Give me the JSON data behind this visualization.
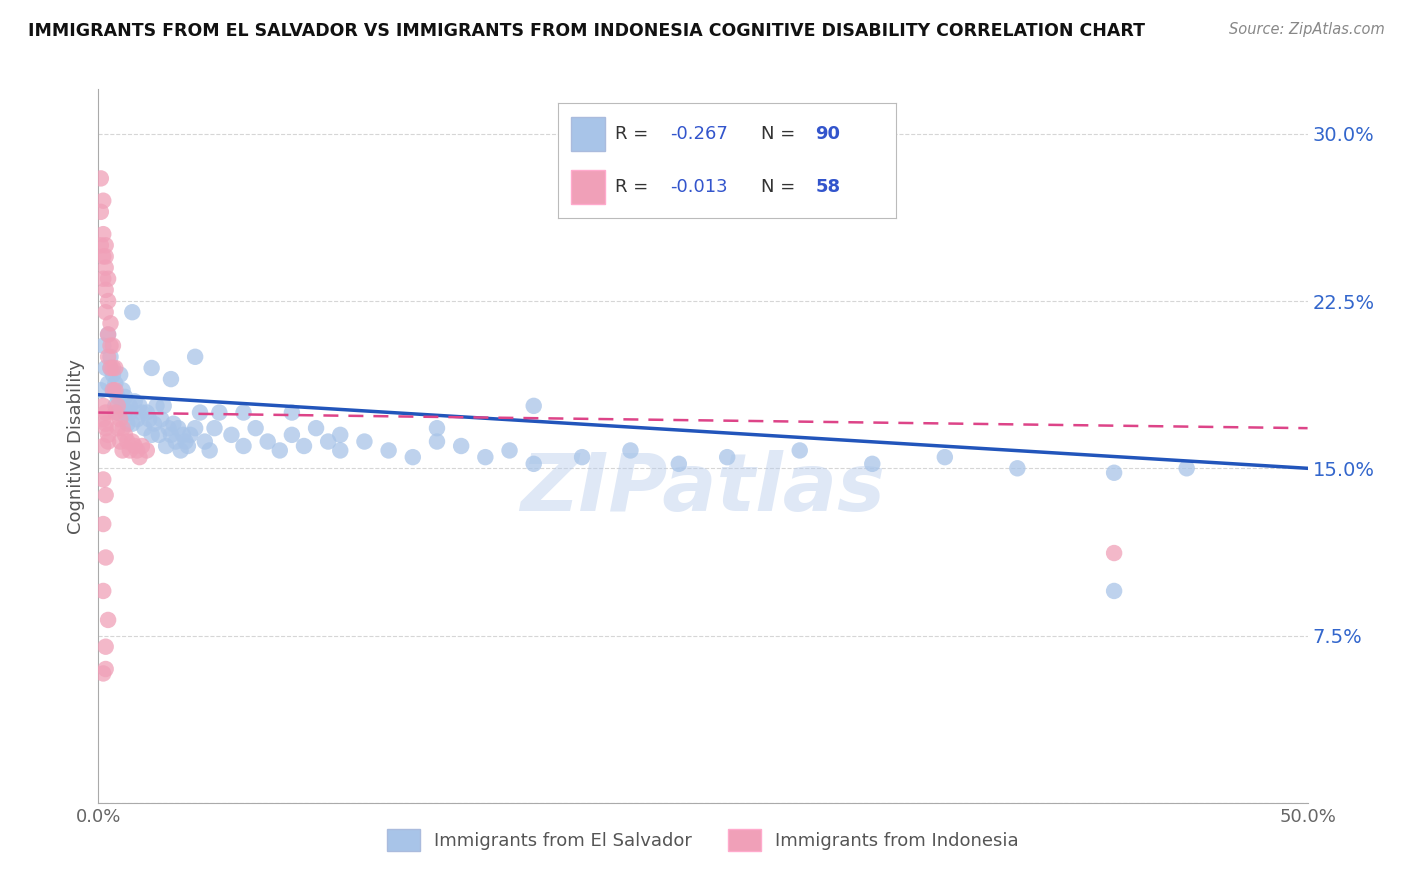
{
  "title": "IMMIGRANTS FROM EL SALVADOR VS IMMIGRANTS FROM INDONESIA COGNITIVE DISABILITY CORRELATION CHART",
  "source": "Source: ZipAtlas.com",
  "ylabel": "Cognitive Disability",
  "series1": {
    "name": "Immigrants from El Salvador",
    "R": -0.267,
    "N": 90,
    "color": "#a8c4e8",
    "line_color": "#2255bb",
    "x": [
      0.001,
      0.002,
      0.003,
      0.004,
      0.004,
      0.005,
      0.005,
      0.006,
      0.006,
      0.007,
      0.007,
      0.008,
      0.008,
      0.009,
      0.01,
      0.01,
      0.011,
      0.011,
      0.012,
      0.013,
      0.013,
      0.014,
      0.015,
      0.016,
      0.017,
      0.018,
      0.019,
      0.02,
      0.021,
      0.022,
      0.023,
      0.024,
      0.025,
      0.026,
      0.027,
      0.028,
      0.029,
      0.03,
      0.031,
      0.032,
      0.033,
      0.034,
      0.035,
      0.036,
      0.037,
      0.038,
      0.04,
      0.042,
      0.044,
      0.046,
      0.048,
      0.05,
      0.055,
      0.06,
      0.065,
      0.07,
      0.075,
      0.08,
      0.085,
      0.09,
      0.095,
      0.1,
      0.11,
      0.12,
      0.13,
      0.14,
      0.15,
      0.16,
      0.17,
      0.18,
      0.2,
      0.22,
      0.24,
      0.26,
      0.29,
      0.32,
      0.35,
      0.38,
      0.42,
      0.45,
      0.014,
      0.022,
      0.03,
      0.04,
      0.06,
      0.08,
      0.1,
      0.14,
      0.18,
      0.42
    ],
    "y": [
      0.185,
      0.205,
      0.195,
      0.188,
      0.21,
      0.2,
      0.195,
      0.185,
      0.192,
      0.178,
      0.188,
      0.182,
      0.175,
      0.192,
      0.178,
      0.185,
      0.175,
      0.182,
      0.17,
      0.178,
      0.175,
      0.17,
      0.18,
      0.172,
      0.178,
      0.175,
      0.168,
      0.175,
      0.172,
      0.165,
      0.17,
      0.178,
      0.165,
      0.172,
      0.178,
      0.16,
      0.168,
      0.165,
      0.17,
      0.162,
      0.168,
      0.158,
      0.165,
      0.162,
      0.16,
      0.165,
      0.168,
      0.175,
      0.162,
      0.158,
      0.168,
      0.175,
      0.165,
      0.16,
      0.168,
      0.162,
      0.158,
      0.165,
      0.16,
      0.168,
      0.162,
      0.158,
      0.162,
      0.158,
      0.155,
      0.162,
      0.16,
      0.155,
      0.158,
      0.152,
      0.155,
      0.158,
      0.152,
      0.155,
      0.158,
      0.152,
      0.155,
      0.15,
      0.148,
      0.15,
      0.22,
      0.195,
      0.19,
      0.2,
      0.175,
      0.175,
      0.165,
      0.168,
      0.178,
      0.095
    ]
  },
  "series2": {
    "name": "Immigrants from Indonesia",
    "R": -0.013,
    "N": 58,
    "color": "#f0a0b8",
    "line_color": "#dd4488",
    "x": [
      0.001,
      0.001,
      0.001,
      0.002,
      0.002,
      0.002,
      0.002,
      0.003,
      0.003,
      0.003,
      0.003,
      0.003,
      0.004,
      0.004,
      0.004,
      0.004,
      0.005,
      0.005,
      0.005,
      0.006,
      0.006,
      0.006,
      0.007,
      0.007,
      0.007,
      0.008,
      0.008,
      0.009,
      0.009,
      0.01,
      0.01,
      0.011,
      0.012,
      0.013,
      0.014,
      0.015,
      0.016,
      0.017,
      0.018,
      0.02,
      0.002,
      0.003,
      0.002,
      0.004,
      0.003,
      0.002,
      0.003,
      0.004,
      0.002,
      0.003,
      0.002,
      0.003,
      0.002,
      0.004,
      0.003,
      0.002,
      0.003,
      0.42
    ],
    "y": [
      0.28,
      0.265,
      0.25,
      0.27,
      0.255,
      0.245,
      0.235,
      0.25,
      0.24,
      0.23,
      0.22,
      0.245,
      0.235,
      0.225,
      0.21,
      0.2,
      0.215,
      0.205,
      0.195,
      0.205,
      0.195,
      0.185,
      0.195,
      0.185,
      0.175,
      0.178,
      0.168,
      0.172,
      0.162,
      0.168,
      0.158,
      0.165,
      0.162,
      0.158,
      0.162,
      0.16,
      0.158,
      0.155,
      0.16,
      0.158,
      0.172,
      0.168,
      0.178,
      0.165,
      0.175,
      0.16,
      0.17,
      0.162,
      0.145,
      0.138,
      0.125,
      0.11,
      0.095,
      0.082,
      0.07,
      0.058,
      0.06,
      0.112
    ]
  },
  "ylim": [
    0.0,
    0.32
  ],
  "xlim": [
    0.0,
    0.5
  ],
  "yticks": [
    0.0,
    0.075,
    0.15,
    0.225,
    0.3
  ],
  "ytick_labels": [
    "",
    "7.5%",
    "15.0%",
    "22.5%",
    "30.0%"
  ],
  "xtick_labels": [
    "0.0%",
    "50.0%"
  ],
  "watermark": "ZIPatlas",
  "bg_color": "#ffffff",
  "grid_color": "#cccccc"
}
